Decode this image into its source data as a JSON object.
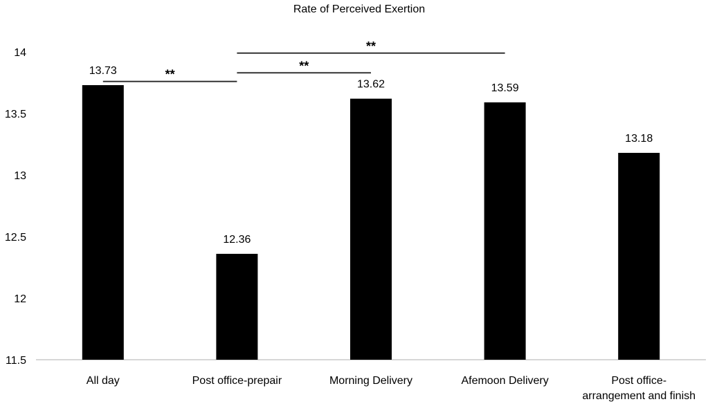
{
  "chart_data": {
    "type": "bar",
    "title": "Rate of Perceived Exertion",
    "xlabel": "",
    "ylabel": "",
    "categories": [
      [
        "All day"
      ],
      [
        "Post office-prepair"
      ],
      [
        "Morning Delivery"
      ],
      [
        "Afemoon Delivery"
      ],
      [
        "Post office-",
        "arrangement and finish"
      ]
    ],
    "values": [
      13.73,
      12.36,
      13.62,
      13.59,
      13.18
    ],
    "data_labels": [
      "13.73",
      "12.36",
      "13.62",
      "13.59",
      "13.18"
    ],
    "ylim": [
      11.5,
      14
    ],
    "yticks": [
      "11.5",
      "12",
      "12.5",
      "13",
      "13.5",
      "14"
    ],
    "bar_color": "#000000",
    "axis_color": "#c8c8c8",
    "grid": false,
    "legend": "none",
    "significance": [
      {
        "from": 0,
        "to": 1,
        "y": 13.76,
        "label": "**"
      },
      {
        "from": 1,
        "to": 2,
        "y": 13.83,
        "label": "**"
      },
      {
        "from": 1,
        "to": 3,
        "y": 13.99,
        "label": "**"
      }
    ]
  }
}
